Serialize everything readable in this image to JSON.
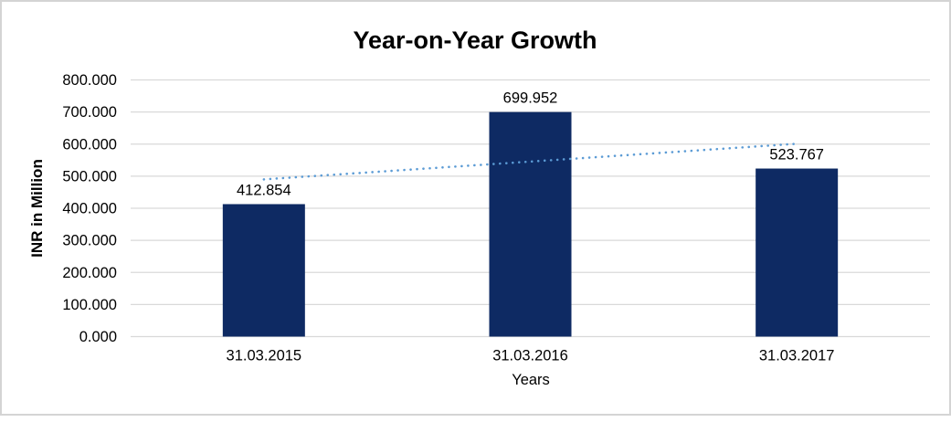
{
  "chart_data": {
    "type": "bar",
    "title": "Year-on-Year Growth",
    "xlabel": "Years",
    "ylabel": "INR in Million",
    "categories": [
      "31.03.2015",
      "31.03.2016",
      "31.03.2017"
    ],
    "values": [
      412.854,
      699.952,
      523.767
    ],
    "data_labels": [
      "412.854",
      "699.952",
      "523.767"
    ],
    "ylim": [
      0,
      800
    ],
    "yticks": [
      800,
      700,
      600,
      500,
      400,
      300,
      200,
      100,
      0
    ],
    "ytick_labels": [
      "800.000",
      "700.000",
      "600.000",
      "500.000",
      "400.000",
      "300.000",
      "200.000",
      "100.000",
      "0.000"
    ],
    "grid": true,
    "legend": false,
    "bar_color": "#0E2A63",
    "gridline_color": "#D9D9D9",
    "border_color": "#D4D4D4",
    "text_color": "#000000",
    "trendline": {
      "type": "linear",
      "style": "dotted",
      "color": "#5B9BD5",
      "start_value": 490,
      "end_value": 601
    }
  }
}
